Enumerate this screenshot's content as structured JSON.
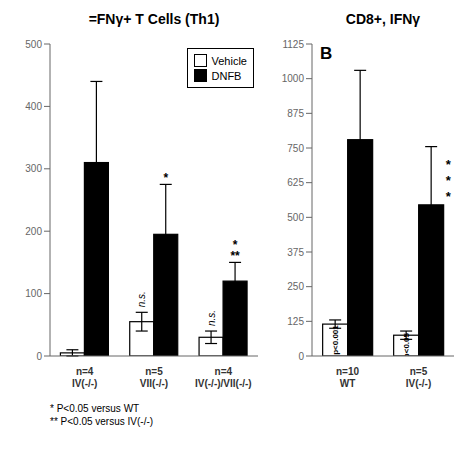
{
  "chart_data": [
    {
      "type": "bar",
      "title": "=FNγ+ T Cells (Th1)",
      "categories": [
        "n=4\nIV(-/-)",
        "n=5\nVII(-/-)",
        "n=4\nIV(-/-)/VII(-/-)"
      ],
      "series": [
        {
          "name": "Vehicle",
          "color": "#ffffff",
          "values": [
            5,
            55,
            30
          ],
          "errors": [
            5,
            15,
            10
          ],
          "annotations": [
            null,
            "n.s.",
            "n.s."
          ]
        },
        {
          "name": "DNFB",
          "color": "#000000",
          "values": [
            310,
            195,
            120
          ],
          "errors": [
            130,
            80,
            30
          ],
          "annotations": [
            null,
            "*",
            "*\n**"
          ]
        }
      ],
      "ylim": [
        0,
        500
      ],
      "yticks": [
        0,
        100,
        200,
        300,
        400,
        500
      ],
      "legend": "upper right",
      "grid": false,
      "annotations": [
        "* P<0.05 versus WT",
        "** P<0.05 versus IV(-/-)"
      ]
    },
    {
      "type": "bar",
      "title": "CD8+, IFNγ",
      "categories": [
        "n=10\nWT",
        "n=5\nIV(-/-)"
      ],
      "series": [
        {
          "name": "Vehicle",
          "color": "#ffffff",
          "values": [
            115,
            75
          ],
          "errors": [
            15,
            15
          ],
          "annotations": [
            "p<0.001",
            "p<0.05"
          ]
        },
        {
          "name": "DNFB",
          "color": "#000000",
          "values": [
            780,
            545
          ],
          "errors": [
            250,
            210
          ],
          "annotations": [
            null,
            "*\n*\n*"
          ]
        }
      ],
      "ylim": [
        0,
        1125
      ],
      "yticks": [
        0,
        125,
        250,
        375,
        500,
        625,
        750,
        875,
        1000,
        1125
      ],
      "grid": false,
      "annotations": [
        "B"
      ]
    }
  ]
}
